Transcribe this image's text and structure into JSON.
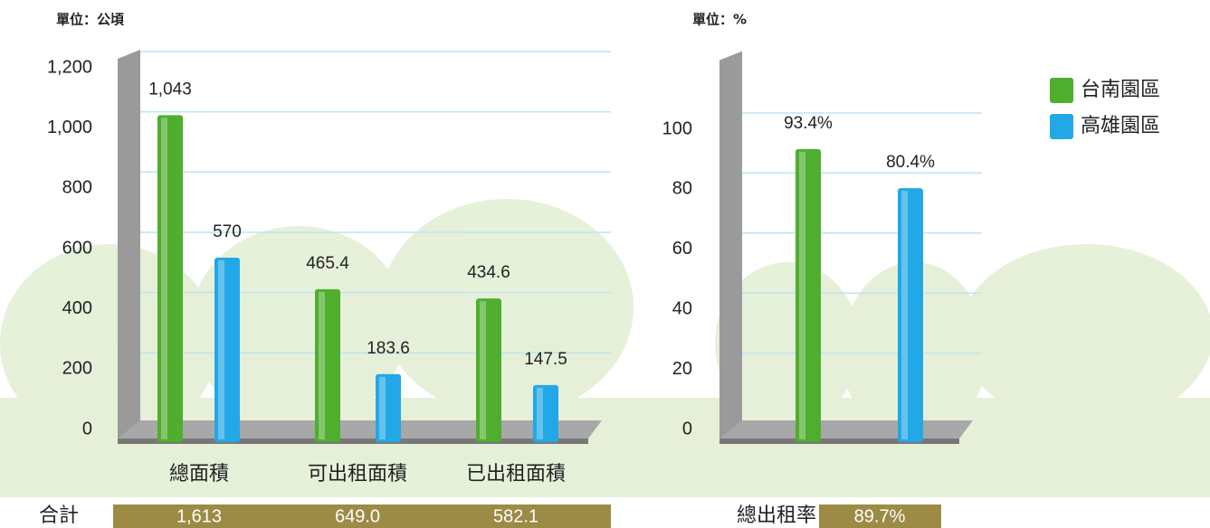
{
  "chart_data": [
    {
      "type": "bar",
      "y_label": "單位：公頃",
      "categories": [
        "總面積",
        "可出租面積",
        "已出租面積"
      ],
      "series": [
        {
          "name": "台南園區",
          "color": "#4fae2e",
          "values": [
            1043,
            465.4,
            434.6
          ],
          "value_labels": [
            "1,043",
            "465.4",
            "434.6"
          ]
        },
        {
          "name": "高雄園區",
          "color": "#22a8e6",
          "values": [
            570,
            183.6,
            147.5
          ]
        }
      ],
      "ylim": [
        0,
        1200
      ],
      "yticks": [
        0,
        200,
        400,
        600,
        800,
        {
          "value": 1000,
          "label": "1,000"
        },
        {
          "value": 1200,
          "label": "1,200"
        }
      ],
      "grid": true,
      "total_label": "合計",
      "totals": [
        "1,613",
        "649.0",
        "582.1"
      ]
    },
    {
      "type": "bar",
      "y_label": "單位：%",
      "categories": [
        null
      ],
      "series": [
        {
          "name": "台南園區",
          "color": "#4fae2e",
          "values": [
            93.4
          ],
          "value_labels": [
            "93.4%"
          ]
        },
        {
          "name": "高雄園區",
          "color": "#22a8e6",
          "values": [
            80.4
          ],
          "value_labels": [
            "80.4%"
          ]
        }
      ],
      "ylim": [
        0,
        120
      ],
      "yticks": [
        0,
        20,
        40,
        60,
        80,
        100
      ],
      "grid": true,
      "legend": "top-right",
      "total_label": "總出租率",
      "totals": [
        "89.7%"
      ]
    }
  ]
}
